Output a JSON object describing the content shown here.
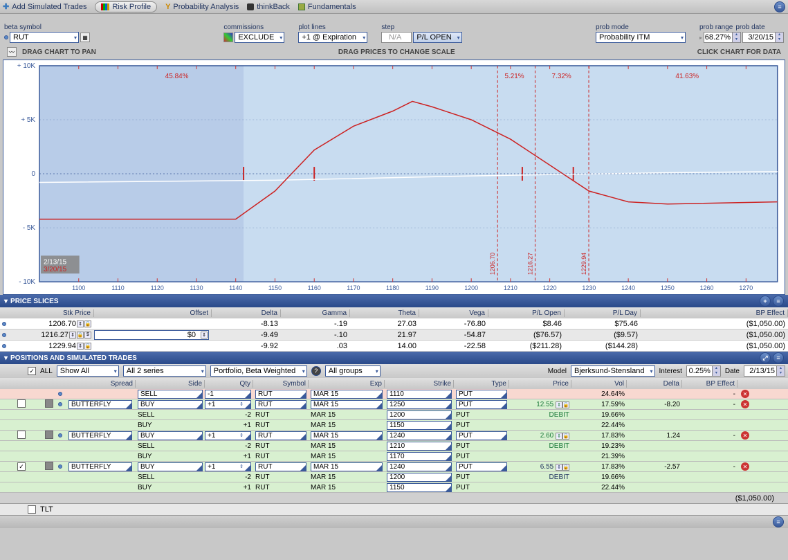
{
  "toolbar": {
    "add": "Add Simulated Trades",
    "risk": "Risk Profile",
    "prob": "Probability Analysis",
    "think": "thinkBack",
    "fund": "Fundamentals"
  },
  "controls": {
    "beta_label": "beta symbol",
    "beta_value": "RUT",
    "commissions_label": "commissions",
    "commissions_value": "EXCLUDE",
    "plot_lines_label": "plot lines",
    "plot_lines_value": "+1 @ Expiration",
    "step_label": "step",
    "step_value": "N/A",
    "plopen": "P/L OPEN",
    "prob_mode_label": "prob mode",
    "prob_mode_value": "Probability ITM",
    "prob_range_label": "prob range",
    "prob_range_value": "68.27%",
    "prob_date_label": "prob date",
    "prob_date_value": "3/20/15"
  },
  "hints": {
    "left": "DRAG CHART TO PAN",
    "mid": "DRAG PRICES TO CHANGE SCALE",
    "right": "CLICK CHART FOR DATA"
  },
  "chart": {
    "y_ticks": [
      "+ 10K",
      "+ 5K",
      "0",
      "- 5K",
      "- 10K"
    ],
    "y_vals": [
      10000,
      5000,
      0,
      -5000,
      -10000
    ],
    "x_ticks": [
      1100,
      1110,
      1120,
      1130,
      1140,
      1150,
      1160,
      1170,
      1180,
      1190,
      1200,
      1210,
      1220,
      1230,
      1240,
      1250,
      1260,
      1270
    ],
    "x_min": 1090,
    "x_max": 1278,
    "date1": "2/13/15",
    "date2": "3/20/15",
    "prob_labels": [
      "45.84%",
      "5.21%",
      "7.32%",
      "41.63%"
    ],
    "prob_x": [
      1125,
      1211,
      1223,
      1255
    ],
    "vlines": [
      {
        "x": 1206.7,
        "label": "1206.70"
      },
      {
        "x": 1216.27,
        "label": "1216.27"
      },
      {
        "x": 1229.94,
        "label": "1229.94"
      }
    ],
    "break_marks": [
      1142,
      1160,
      1213,
      1226
    ],
    "red_line": [
      [
        1090,
        -4200
      ],
      [
        1140,
        -4200
      ],
      [
        1150,
        -1600
      ],
      [
        1160,
        2200
      ],
      [
        1170,
        4400
      ],
      [
        1180,
        5800
      ],
      [
        1185,
        6700
      ],
      [
        1190,
        6200
      ],
      [
        1200,
        5000
      ],
      [
        1210,
        3200
      ],
      [
        1220,
        800
      ],
      [
        1230,
        -1600
      ],
      [
        1240,
        -2600
      ],
      [
        1250,
        -2800
      ],
      [
        1278,
        -2600
      ]
    ],
    "white_line": [
      [
        1090,
        -800
      ],
      [
        1150,
        -600
      ],
      [
        1200,
        -200
      ],
      [
        1250,
        100
      ],
      [
        1278,
        200
      ]
    ],
    "bg": "#b8cce8",
    "bg2": "#c8dcf0",
    "red": "#cc2222",
    "blue": "#3a5a9a"
  },
  "slices": {
    "title": "PRICE SLICES",
    "cols": [
      "",
      "Stk Price",
      "Offset",
      "Delta",
      "Gamma",
      "Theta",
      "Vega",
      "P/L Open",
      "P/L Day",
      "BP Effect"
    ],
    "rows": [
      {
        "stk": "1206.70",
        "offset": "",
        "delta": "-8.13",
        "gamma": "-.19",
        "theta": "27.03",
        "vega": "-76.80",
        "plo": "$8.46",
        "pld": "$75.46",
        "bp": "($1,050.00)",
        "lock": false,
        "showOffset": false
      },
      {
        "stk": "1216.27",
        "offset": "$0",
        "delta": "-9.49",
        "gamma": "-.10",
        "theta": "21.97",
        "vega": "-54.87",
        "plo": "($76.57)",
        "pld": "($9.57)",
        "bp": "($1,050.00)",
        "lock": true,
        "showOffset": true
      },
      {
        "stk": "1229.94",
        "offset": "",
        "delta": "-9.92",
        "gamma": ".03",
        "theta": "14.00",
        "vega": "-22.58",
        "plo": "($211.28)",
        "pld": "($144.28)",
        "bp": "($1,050.00)",
        "lock": false,
        "showOffset": false
      }
    ]
  },
  "positions": {
    "title": "POSITIONS AND SIMULATED TRADES",
    "all": "ALL",
    "show_all": "Show All",
    "series": "All 2 series",
    "portfolio": "Portfolio, Beta Weighted",
    "groups": "All groups",
    "model_label": "Model",
    "model": "Bjerksund-Stensland",
    "interest_label": "Interest",
    "interest": "0.25%",
    "date_label": "Date",
    "date": "2/13/15",
    "cols": [
      "",
      "",
      "",
      "Spread",
      "Side",
      "Qty",
      "Symbol",
      "Exp",
      "Strike",
      "Type",
      "Price",
      "Vol",
      "Delta",
      "BP Effect",
      ""
    ],
    "groups_data": [
      {
        "checked": false,
        "spread": "",
        "legs": [
          {
            "cls": "leg-sell",
            "side": "SELL",
            "qty": "-1",
            "sym": "RUT",
            "exp": "MAR 15",
            "strike": "1110",
            "type": "PUT",
            "price": "",
            "vol": "24.64%",
            "delta": "",
            "bp": "-",
            "boxed": true
          }
        ]
      },
      {
        "checked": false,
        "spread": "BUTTERFLY",
        "price": "12.55",
        "debit": "DEBIT",
        "delta": "-8.20",
        "priceColor": "#1a7a3a",
        "legs": [
          {
            "cls": "leg-buy",
            "side": "BUY",
            "qty": "+1",
            "sym": "RUT",
            "exp": "MAR 15",
            "strike": "1250",
            "type": "PUT",
            "vol": "17.59%",
            "boxed": true,
            "spin": true
          },
          {
            "cls": "leg-buy",
            "side": "SELL",
            "qty": "-2",
            "sym": "RUT",
            "exp": "MAR 15",
            "strike": "1200",
            "type": "PUT",
            "vol": "19.66%"
          },
          {
            "cls": "leg-buy",
            "side": "BUY",
            "qty": "+1",
            "sym": "RUT",
            "exp": "MAR 15",
            "strike": "1150",
            "type": "PUT",
            "vol": "22.44%"
          }
        ]
      },
      {
        "checked": false,
        "spread": "BUTTERFLY",
        "price": "2.60",
        "debit": "DEBIT",
        "delta": "1.24",
        "priceColor": "#1a7a3a",
        "legs": [
          {
            "cls": "leg-buy",
            "side": "BUY",
            "qty": "+1",
            "sym": "RUT",
            "exp": "MAR 15",
            "strike": "1240",
            "type": "PUT",
            "vol": "17.83%",
            "boxed": true,
            "spin": true
          },
          {
            "cls": "leg-buy",
            "side": "SELL",
            "qty": "-2",
            "sym": "RUT",
            "exp": "MAR 15",
            "strike": "1210",
            "type": "PUT",
            "vol": "19.23%"
          },
          {
            "cls": "leg-buy",
            "side": "BUY",
            "qty": "+1",
            "sym": "RUT",
            "exp": "MAR 15",
            "strike": "1170",
            "type": "PUT",
            "vol": "21.39%"
          }
        ]
      },
      {
        "checked": true,
        "spread": "BUTTERFLY",
        "price": "6.55",
        "debit": "DEBIT",
        "delta": "-2.57",
        "priceColor": "#223560",
        "legs": [
          {
            "cls": "leg-buy",
            "side": "BUY",
            "qty": "+1",
            "sym": "RUT",
            "exp": "MAR 15",
            "strike": "1240",
            "type": "PUT",
            "vol": "17.83%",
            "boxed": true,
            "spin": true
          },
          {
            "cls": "leg-buy",
            "side": "SELL",
            "qty": "-2",
            "sym": "RUT",
            "exp": "MAR 15",
            "strike": "1200",
            "type": "PUT",
            "vol": "19.66%"
          },
          {
            "cls": "leg-buy",
            "side": "BUY",
            "qty": "+1",
            "sym": "RUT",
            "exp": "MAR 15",
            "strike": "1150",
            "type": "PUT",
            "vol": "22.44%"
          }
        ]
      }
    ],
    "total_bp": "($1,050.00)",
    "tlt": "TLT"
  }
}
